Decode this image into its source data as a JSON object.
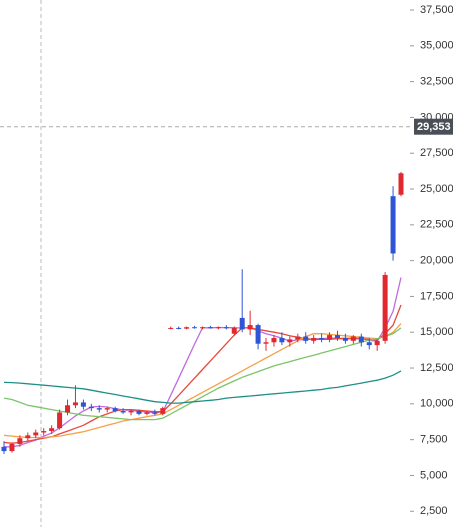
{
  "chart_data": {
    "type": "candlestick",
    "open": [
      7000,
      6700,
      7200,
      7600,
      7800,
      8000,
      8100,
      8300,
      9400,
      9900,
      10100,
      9800,
      9700,
      9600,
      9700,
      9500,
      9400,
      9500,
      9300,
      9400,
      9300,
      15300,
      15300,
      15250,
      15350,
      15300,
      15350,
      15300,
      15350,
      14900,
      16000,
      15200,
      15500,
      14200,
      14300,
      14600,
      14300,
      14500,
      14700,
      14400,
      14600,
      14500,
      14800,
      14600,
      14400,
      14700,
      14300,
      14100,
      14400,
      24500,
      24600
    ],
    "high": [
      7400,
      7300,
      7800,
      8000,
      8200,
      8300,
      8500,
      9600,
      10300,
      11300,
      10300,
      10000,
      9900,
      9800,
      9800,
      9700,
      9600,
      9600,
      9500,
      9600,
      9800,
      15400,
      15400,
      15400,
      15450,
      15400,
      15450,
      15400,
      15500,
      15400,
      19400,
      16500,
      15600,
      14600,
      14800,
      15000,
      14700,
      14900,
      15000,
      14800,
      14900,
      15000,
      15100,
      14900,
      14800,
      14900,
      14600,
      14500,
      19200,
      25200,
      26200
    ],
    "low": [
      6500,
      6600,
      7000,
      7400,
      7600,
      7800,
      7900,
      8200,
      9200,
      9700,
      9600,
      9500,
      9400,
      9400,
      9400,
      9300,
      9200,
      9200,
      9200,
      9200,
      9200,
      15200,
      15200,
      15200,
      15250,
      15200,
      15250,
      15200,
      15200,
      14800,
      15000,
      14800,
      13800,
      13700,
      14000,
      14100,
      14000,
      14300,
      14200,
      14200,
      14300,
      14300,
      14400,
      14200,
      14200,
      14000,
      13800,
      13700,
      14200,
      20000,
      24500
    ],
    "close": [
      6700,
      7200,
      7600,
      7800,
      8000,
      8100,
      8300,
      9400,
      9900,
      10100,
      9800,
      9700,
      9600,
      9700,
      9500,
      9400,
      9500,
      9300,
      9400,
      9300,
      9700,
      15300,
      15250,
      15350,
      15300,
      15350,
      15300,
      15350,
      15300,
      15300,
      15200,
      15500,
      14200,
      14300,
      14600,
      14300,
      14500,
      14700,
      14400,
      14600,
      14500,
      14800,
      14600,
      14400,
      14700,
      14300,
      14100,
      14400,
      19000,
      20500,
      26100
    ],
    "up_color": "#e0282e",
    "down_color": "#2f55d4",
    "series": [
      {
        "color": "#c06be0",
        "values": [
          7000,
          7000,
          7100,
          7300,
          7460,
          7740,
          7960,
          8320,
          8740,
          9160,
          9500,
          9780,
          9820,
          9780,
          9660,
          9580,
          9540,
          9480,
          9420,
          9380,
          9440,
          10600,
          11790,
          12980,
          14180,
          15310,
          15310,
          15330,
          15320,
          15320,
          15290,
          15330,
          15100,
          14900,
          14760,
          14580,
          14380,
          14480,
          14480,
          14540,
          14540,
          14600,
          14580,
          14580,
          14600,
          14560,
          14420,
          14380,
          15300,
          16460,
          18820
        ]
      },
      {
        "color": "#e8483a",
        "values": [
          7300,
          7250,
          7300,
          7400,
          7500,
          7600,
          7700,
          7900,
          8100,
          8300,
          8500,
          8800,
          9100,
          9300,
          9500,
          9600,
          9600,
          9550,
          9500,
          9450,
          9450,
          10000,
          10600,
          11200,
          11800,
          12400,
          13000,
          13600,
          14200,
          14800,
          15300,
          15300,
          15200,
          15100,
          15000,
          14900,
          14750,
          14650,
          14550,
          14500,
          14500,
          14500,
          14550,
          14550,
          14550,
          14550,
          14500,
          14450,
          14900,
          15500,
          16900
        ]
      },
      {
        "color": "#f5a04a",
        "values": [
          7800,
          7750,
          7700,
          7650,
          7650,
          7650,
          7700,
          7750,
          7850,
          7950,
          8050,
          8200,
          8350,
          8500,
          8650,
          8800,
          8900,
          9000,
          9100,
          9200,
          9300,
          9600,
          9900,
          10200,
          10500,
          10800,
          11100,
          11400,
          11700,
          12000,
          12300,
          12600,
          12900,
          13200,
          13500,
          13800,
          14100,
          14400,
          14700,
          14900,
          14900,
          14850,
          14800,
          14750,
          14700,
          14650,
          14600,
          14550,
          14700,
          15000,
          15600
        ]
      },
      {
        "color": "#7cc46a",
        "values": [
          10400,
          10300,
          10100,
          9900,
          9800,
          9700,
          9600,
          9500,
          9400,
          9300,
          9200,
          9150,
          9100,
          9050,
          9000,
          8950,
          8900,
          8900,
          8900,
          8900,
          9000,
          9300,
          9600,
          9900,
          10200,
          10500,
          10800,
          11100,
          11350,
          11600,
          11850,
          12050,
          12250,
          12450,
          12650,
          12800,
          12950,
          13100,
          13250,
          13400,
          13550,
          13700,
          13850,
          14000,
          14150,
          14300,
          14450,
          14550,
          14700,
          14900,
          15300
        ]
      },
      {
        "color": "#1f8f86",
        "values": [
          11500,
          11480,
          11450,
          11400,
          11350,
          11300,
          11250,
          11200,
          11150,
          11100,
          11050,
          10950,
          10850,
          10750,
          10650,
          10550,
          10450,
          10350,
          10250,
          10150,
          10100,
          10050,
          10050,
          10100,
          10150,
          10200,
          10250,
          10300,
          10400,
          10450,
          10500,
          10550,
          10600,
          10650,
          10700,
          10750,
          10800,
          10850,
          10900,
          10950,
          11000,
          11100,
          11150,
          11250,
          11350,
          11450,
          11550,
          11650,
          11800,
          12000,
          12300
        ]
      }
    ],
    "ylim": [
      1400,
      38200
    ],
    "yticks": [
      {
        "value": 2500,
        "label": "2,500"
      },
      {
        "value": 5000,
        "label": "5,000"
      },
      {
        "value": 7500,
        "label": "7,500"
      },
      {
        "value": 10000,
        "label": "10,000"
      },
      {
        "value": 12500,
        "label": "12,500"
      },
      {
        "value": 15000,
        "label": "15,000"
      },
      {
        "value": 17500,
        "label": "17,500"
      },
      {
        "value": 20000,
        "label": "20,000"
      },
      {
        "value": 22500,
        "label": "22,500"
      },
      {
        "value": 25000,
        "label": "25,000"
      },
      {
        "value": 27500,
        "label": "27,500"
      },
      {
        "value": 30000,
        "label": "30,000"
      },
      {
        "value": 32500,
        "label": "32,500"
      },
      {
        "value": 35000,
        "label": "35,000"
      },
      {
        "value": 37500,
        "label": "37,500"
      }
    ],
    "price_marker": {
      "value": 29353,
      "label": "29,353"
    }
  }
}
